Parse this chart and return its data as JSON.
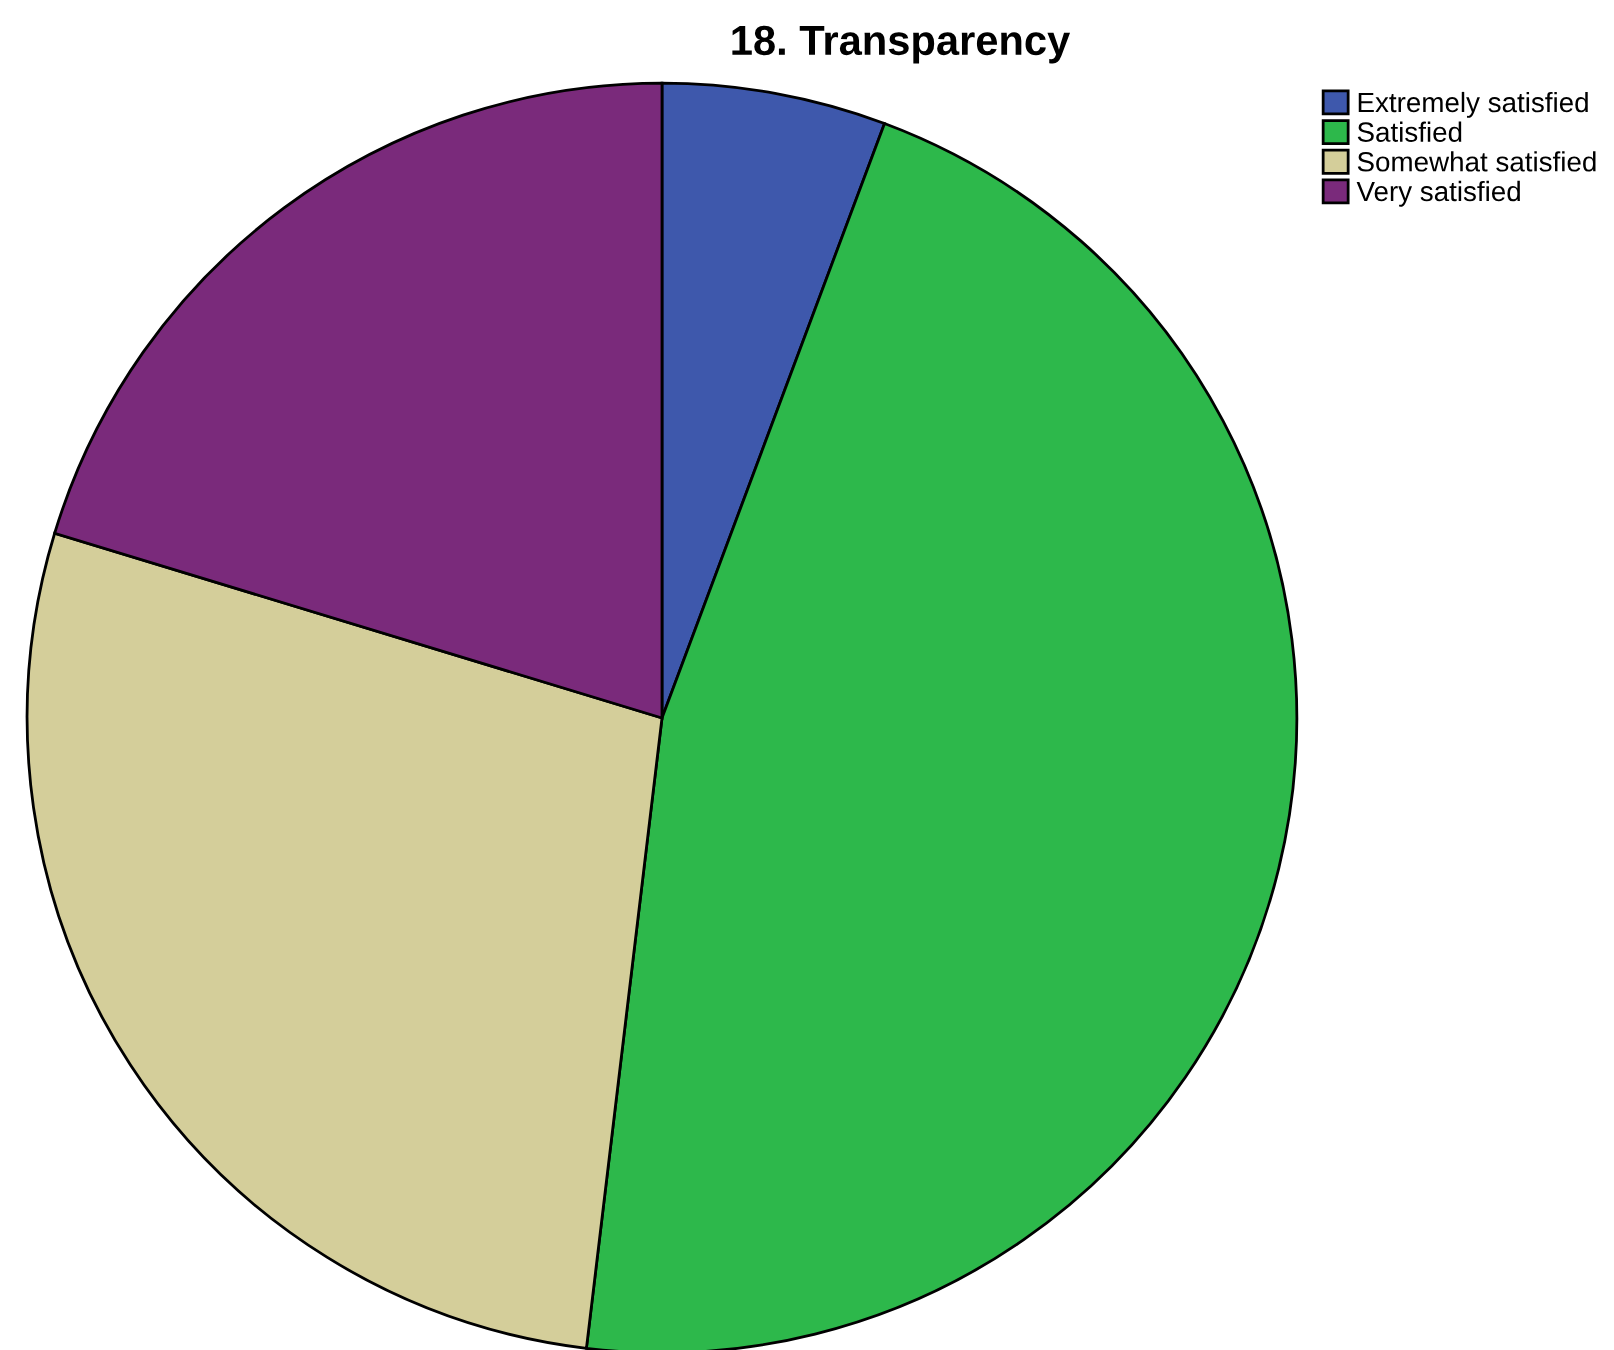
{
  "chart_data": {
    "type": "pie",
    "title": "18. Transparency",
    "categories": [
      "Extremely satisfied",
      "Satisfied",
      "Somewhat satisfied",
      "Very satisfied"
    ],
    "values": [
      5.7,
      46.2,
      27.8,
      20.3
    ],
    "colors": [
      "#3e58ac",
      "#2db84b",
      "#d4ce9a",
      "#7a2a7b"
    ],
    "legend": "top right"
  }
}
